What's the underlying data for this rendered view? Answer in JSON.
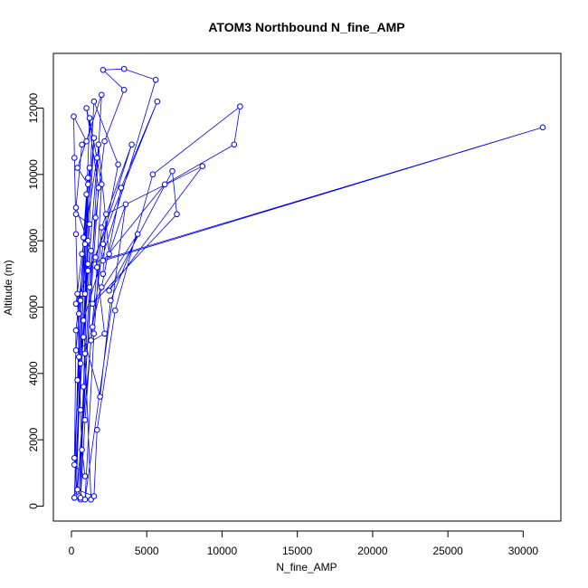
{
  "chart_data": {
    "type": "line",
    "title": "ATOM3 Northbound N_fine_AMP",
    "xlabel": "N_fine_AMP",
    "ylabel": "Altitude (m)",
    "xlim": [
      -1200,
      32500
    ],
    "ylim": [
      -450,
      13650
    ],
    "xticks": [
      0,
      5000,
      10000,
      15000,
      20000,
      25000,
      30000
    ],
    "yticks": [
      0,
      2000,
      4000,
      6000,
      8000,
      10000,
      12000
    ],
    "xtick_labels": [
      "0",
      "5000",
      "10000",
      "15000",
      "20000",
      "25000",
      "30000"
    ],
    "ytick_labels": [
      "0",
      "2000",
      "4000",
      "6000",
      "8000",
      "10000",
      "12000"
    ],
    "grid": false,
    "legend": "none",
    "series": [
      {
        "color": "#0000ff",
        "marker": "open-circle",
        "points": [
          [
            200,
            250
          ],
          [
            400,
            3800
          ],
          [
            600,
            6200
          ],
          [
            800,
            8100
          ],
          [
            1000,
            9400
          ],
          [
            1200,
            10200
          ],
          [
            600,
            200
          ],
          [
            900,
            2600
          ],
          [
            1300,
            5000
          ],
          [
            1700,
            7200
          ],
          [
            2000,
            9700
          ],
          [
            1200,
            11700
          ],
          [
            300,
            300
          ],
          [
            1400,
            5400
          ],
          [
            2100,
            7900
          ],
          [
            3100,
            10300
          ],
          [
            1500,
            12200
          ],
          [
            200,
            1450
          ],
          [
            700,
            6400
          ],
          [
            1100,
            9700
          ],
          [
            400,
            10200
          ],
          [
            2000,
            12400
          ],
          [
            500,
            300
          ],
          [
            800,
            3600
          ],
          [
            1200,
            6600
          ],
          [
            1600,
            8700
          ],
          [
            2200,
            11000
          ],
          [
            3500,
            12550
          ],
          [
            2100,
            13150
          ],
          [
            3500,
            13180
          ],
          [
            5600,
            12850
          ],
          [
            800,
            5600
          ],
          [
            1100,
            8000
          ],
          [
            600,
            250
          ],
          [
            1300,
            200
          ],
          [
            900,
            4600
          ],
          [
            2000,
            6600
          ],
          [
            3300,
            9600
          ],
          [
            5700,
            12200
          ],
          [
            300,
            6100
          ],
          [
            700,
            7600
          ],
          [
            1700,
            10500
          ],
          [
            1000,
            12000
          ],
          [
            1800,
            9600
          ],
          [
            400,
            500
          ],
          [
            1500,
            300
          ],
          [
            1700,
            2300
          ],
          [
            2900,
            5900
          ],
          [
            5400,
            10000
          ],
          [
            11200,
            12050
          ],
          [
            10800,
            10900
          ],
          [
            6200,
            9700
          ],
          [
            2100,
            7400
          ],
          [
            31300,
            11420
          ],
          [
            1100,
            7300
          ],
          [
            2100,
            7000
          ],
          [
            2300,
            8800
          ],
          [
            8700,
            10250
          ],
          [
            2500,
            6500
          ],
          [
            6700,
            10100
          ],
          [
            7000,
            8800
          ],
          [
            1400,
            6100
          ],
          [
            4400,
            8200
          ],
          [
            2600,
            6200
          ],
          [
            1900,
            3300
          ],
          [
            800,
            5100
          ],
          [
            1300,
            7700
          ],
          [
            300,
            9000
          ],
          [
            700,
            10900
          ],
          [
            1000,
            11000
          ],
          [
            150,
            11750
          ],
          [
            200,
            10500
          ],
          [
            300,
            8200
          ],
          [
            400,
            6400
          ],
          [
            500,
            4500
          ],
          [
            600,
            2900
          ],
          [
            700,
            1700
          ],
          [
            900,
            900
          ],
          [
            200,
            1250
          ],
          [
            300,
            5300
          ],
          [
            900,
            7900
          ],
          [
            1500,
            11100
          ],
          [
            200,
            250
          ],
          [
            600,
            4300
          ],
          [
            1100,
            7100
          ],
          [
            1800,
            10900
          ],
          [
            2500,
            7600
          ],
          [
            3600,
            9100
          ],
          [
            900,
            200
          ],
          [
            1500,
            5200
          ],
          [
            2000,
            8400
          ],
          [
            4000,
            10900
          ],
          [
            1600,
            7500
          ],
          [
            2200,
            5200
          ],
          [
            300,
            4700
          ],
          [
            500,
            5800
          ],
          [
            1100,
            9900
          ],
          [
            900,
            6400
          ],
          [
            1200,
            8500
          ],
          [
            300,
            8800
          ]
        ]
      }
    ]
  }
}
